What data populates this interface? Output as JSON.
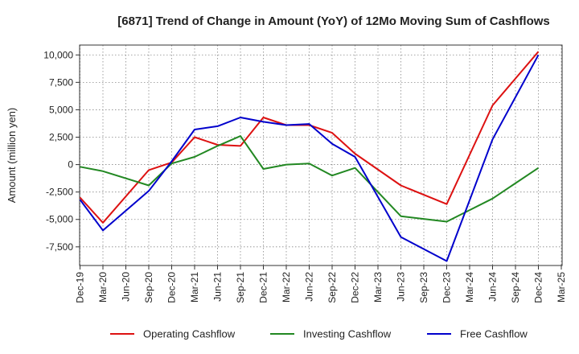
{
  "chart_data": {
    "type": "line",
    "title": "[6871]  Trend of Change in Amount (YoY) of 12Mo Moving Sum of Cashflows",
    "xlabel": "",
    "ylabel": "Amount (million yen)",
    "ylim": [
      -9200,
      10900
    ],
    "yticks": [
      10000,
      7500,
      5000,
      2500,
      0,
      -2500,
      -5000,
      -7500
    ],
    "ytick_labels": [
      "10,000",
      "7,500",
      "5,000",
      "2,500",
      "0",
      "-2,500",
      "-5,000",
      "-7,500"
    ],
    "categories": [
      "Dec-19",
      "Mar-20",
      "Jun-20",
      "Sep-20",
      "Dec-20",
      "Mar-21",
      "Jun-21",
      "Sep-21",
      "Dec-21",
      "Mar-22",
      "Jun-22",
      "Sep-22",
      "Dec-22",
      "Mar-23",
      "Jun-23",
      "Sep-23",
      "Dec-23",
      "Mar-24",
      "Jun-24",
      "Sep-24",
      "Dec-24",
      "Mar-25"
    ],
    "grid": true,
    "legend_position": "bottom",
    "series": [
      {
        "name": "Operating Cashflow",
        "color": "#dd1111",
        "values": [
          -3000,
          -5300,
          null,
          -500,
          200,
          2500,
          1800,
          1700,
          4300,
          3600,
          3600,
          2900,
          1000,
          null,
          -1900,
          null,
          -3600,
          null,
          5400,
          null,
          10300,
          null
        ]
      },
      {
        "name": "Investing Cashflow",
        "color": "#228822",
        "values": [
          -200,
          -600,
          null,
          -1900,
          100,
          700,
          1700,
          2600,
          -400,
          0,
          100,
          -1000,
          -300,
          null,
          -4700,
          null,
          -5200,
          null,
          -3100,
          null,
          -300,
          null
        ]
      },
      {
        "name": "Free Cashflow",
        "color": "#0000cc",
        "values": [
          -3200,
          -6000,
          null,
          -2400,
          300,
          3200,
          3500,
          4300,
          3900,
          3600,
          3700,
          1900,
          700,
          null,
          -6600,
          null,
          -8800,
          null,
          2300,
          null,
          10000,
          null
        ]
      }
    ]
  }
}
